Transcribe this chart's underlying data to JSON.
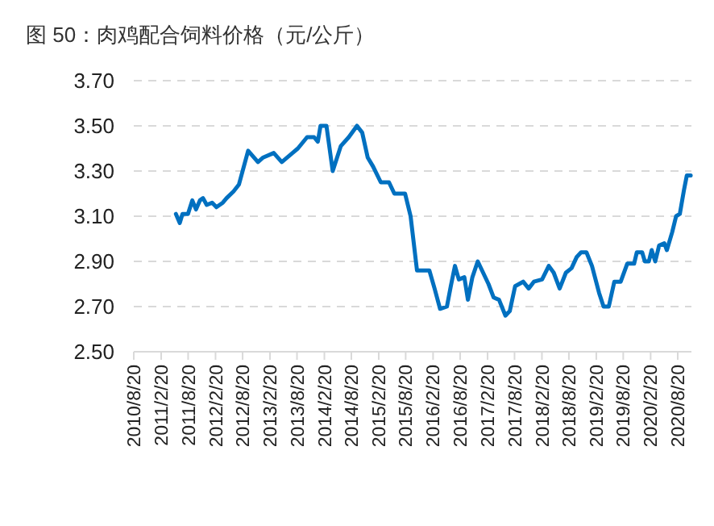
{
  "chart_data": {
    "type": "line",
    "title": "图 50：肉鸡配合饲料价格（元/公斤）",
    "x": [
      "2011-05-30",
      "2011-06-25",
      "2011-07-13",
      "2011-08-19",
      "2011-09-17",
      "2011-10-12",
      "2011-11-07",
      "2011-11-28",
      "2011-12-23",
      "2012-01-28",
      "2012-02-26",
      "2012-04-09",
      "2012-05-04",
      "2012-06-20",
      "2012-07-26",
      "2012-09-26",
      "2012-12-01",
      "2013-01-05",
      "2013-03-17",
      "2013-05-10",
      "2013-07-21",
      "2013-08-26",
      "2013-10-27",
      "2013-12-13",
      "2014-01-07",
      "2014-01-25",
      "2014-03-06",
      "2014-04-17",
      "2014-06-10",
      "2014-08-03",
      "2014-09-27",
      "2014-11-01",
      "2014-12-08",
      "2015-01-13",
      "2015-03-06",
      "2015-04-30",
      "2015-06-05",
      "2015-08-16",
      "2015-09-22",
      "2015-11-04",
      "2016-01-26",
      "2016-03-01",
      "2016-04-07",
      "2016-05-23",
      "2016-06-18",
      "2016-07-16",
      "2016-08-11",
      "2016-09-17",
      "2016-10-11",
      "2016-11-10",
      "2016-12-16",
      "2017-01-21",
      "2017-02-26",
      "2017-04-02",
      "2017-05-08",
      "2017-06-20",
      "2017-07-19",
      "2017-08-24",
      "2017-10-17",
      "2017-11-23",
      "2017-12-28",
      "2018-02-21",
      "2018-04-07",
      "2018-05-10",
      "2018-06-19",
      "2018-07-31",
      "2018-09-07",
      "2018-10-12",
      "2018-11-10",
      "2018-12-16",
      "2019-01-22",
      "2019-03-11",
      "2019-04-10",
      "2019-05-15",
      "2019-06-21",
      "2019-08-03",
      "2019-09-16",
      "2019-11-01",
      "2019-11-19",
      "2019-12-25",
      "2020-01-12",
      "2020-02-08",
      "2020-02-27",
      "2020-03-22",
      "2020-04-17",
      "2020-05-22",
      "2020-06-08",
      "2020-07-14",
      "2020-08-09",
      "2020-09-03",
      "2020-10-02",
      "2020-10-20",
      "2020-11-15"
    ],
    "series": [
      {
        "color": "#0070c0",
        "values": [
          3.11,
          3.07,
          3.11,
          3.11,
          3.17,
          3.13,
          3.17,
          3.18,
          3.15,
          3.16,
          3.14,
          3.16,
          3.18,
          3.21,
          3.24,
          3.39,
          3.34,
          3.36,
          3.38,
          3.34,
          3.38,
          3.4,
          3.45,
          3.45,
          3.43,
          3.5,
          3.5,
          3.3,
          3.41,
          3.45,
          3.5,
          3.47,
          3.36,
          3.32,
          3.25,
          3.25,
          3.2,
          3.2,
          3.1,
          2.86,
          2.86,
          2.78,
          2.69,
          2.7,
          2.79,
          2.88,
          2.82,
          2.83,
          2.73,
          2.83,
          2.9,
          2.85,
          2.8,
          2.74,
          2.73,
          2.66,
          2.68,
          2.79,
          2.81,
          2.78,
          2.81,
          2.82,
          2.88,
          2.85,
          2.78,
          2.85,
          2.87,
          2.92,
          2.94,
          2.94,
          2.88,
          2.76,
          2.7,
          2.7,
          2.81,
          2.81,
          2.89,
          2.89,
          2.94,
          2.94,
          2.9,
          2.9,
          2.95,
          2.9,
          2.97,
          2.98,
          2.95,
          3.03,
          3.1,
          3.11,
          3.22,
          3.28,
          3.28
        ]
      }
    ],
    "xlim": [
      "2010-08-20",
      "2020-11-20"
    ],
    "xticks": [
      {
        "value": "2010-08-20",
        "label": "2010/8/20"
      },
      {
        "value": "2011-02-20",
        "label": "2011/2/20"
      },
      {
        "value": "2011-08-20",
        "label": "2011/8/20"
      },
      {
        "value": "2012-02-20",
        "label": "2012/2/20"
      },
      {
        "value": "2012-08-20",
        "label": "2012/8/20"
      },
      {
        "value": "2013-02-20",
        "label": "2013/2/20"
      },
      {
        "value": "2013-08-20",
        "label": "2013/8/20"
      },
      {
        "value": "2014-02-20",
        "label": "2014/2/20"
      },
      {
        "value": "2014-08-20",
        "label": "2014/8/20"
      },
      {
        "value": "2015-02-20",
        "label": "2015/2/20"
      },
      {
        "value": "2015-08-20",
        "label": "2015/8/20"
      },
      {
        "value": "2016-02-20",
        "label": "2016/2/20"
      },
      {
        "value": "2016-08-20",
        "label": "2016/8/20"
      },
      {
        "value": "2017-02-20",
        "label": "2017/2/20"
      },
      {
        "value": "2017-08-20",
        "label": "2017/8/20"
      },
      {
        "value": "2018-02-20",
        "label": "2018/2/20"
      },
      {
        "value": "2018-08-20",
        "label": "2018/8/20"
      },
      {
        "value": "2019-02-20",
        "label": "2019/2/20"
      },
      {
        "value": "2019-08-20",
        "label": "2019/8/20"
      },
      {
        "value": "2020-02-20",
        "label": "2020/2/20"
      },
      {
        "value": "2020-08-20",
        "label": "2020/8/20"
      }
    ],
    "ylim": [
      2.5,
      3.7
    ],
    "yticks": [
      {
        "value": 2.5,
        "label": "2.50"
      },
      {
        "value": 2.7,
        "label": "2.70"
      },
      {
        "value": 2.9,
        "label": "2.90"
      },
      {
        "value": 3.1,
        "label": "3.10"
      },
      {
        "value": 3.3,
        "label": "3.30"
      },
      {
        "value": 3.5,
        "label": "3.50"
      },
      {
        "value": 3.7,
        "label": "3.70"
      }
    ],
    "grid": "y",
    "line_style": "solid"
  }
}
